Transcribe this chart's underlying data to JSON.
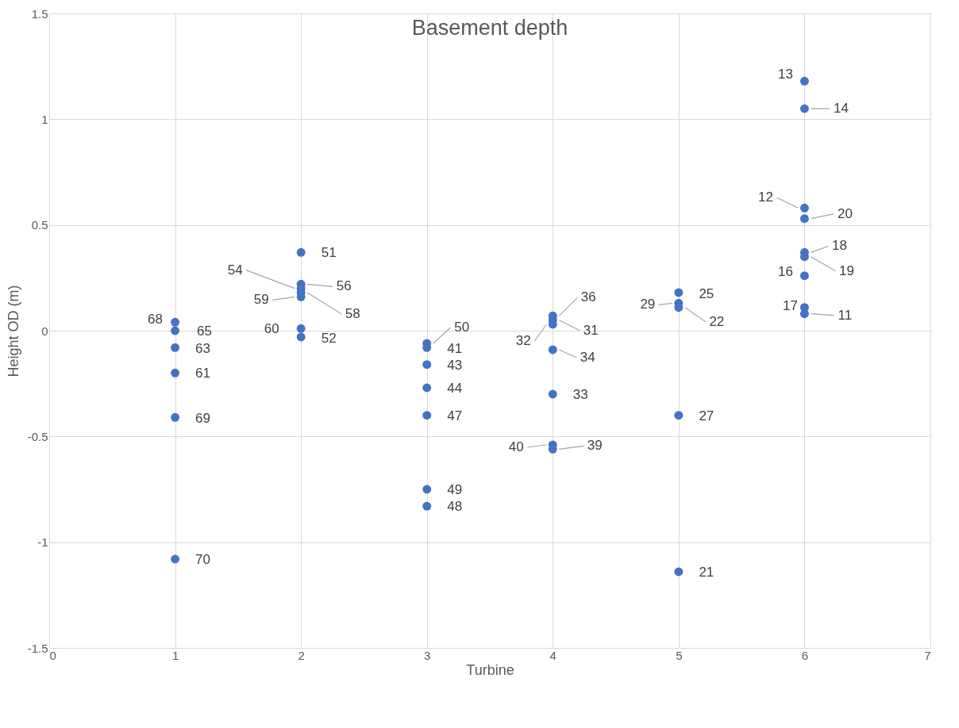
{
  "chart_data": {
    "type": "scatter",
    "title": "Basement depth",
    "xlabel": "Turbine",
    "ylabel": "Height OD (m)",
    "xlim": [
      0,
      7
    ],
    "xticks": [
      0,
      1,
      2,
      3,
      4,
      5,
      6,
      7
    ],
    "ylim": [
      -1.5,
      1.5
    ],
    "yticks": [
      -1.5,
      -1,
      -0.5,
      0,
      0.5,
      1,
      1.5
    ],
    "grid": true,
    "marker": "circle",
    "legend": false,
    "series": [
      {
        "color": "#4472c4",
        "x": [
          1,
          1,
          1,
          1,
          1,
          1,
          2,
          2,
          2,
          2,
          2,
          2,
          2,
          3,
          3,
          3,
          3,
          3,
          3,
          3,
          4,
          4,
          4,
          4,
          4,
          4,
          4,
          5,
          5,
          5,
          5,
          5,
          6,
          6,
          6,
          6,
          6,
          6,
          6,
          6,
          6
        ],
        "values": [
          0.04,
          0.0,
          -0.08,
          -0.2,
          -0.41,
          -1.08,
          0.37,
          0.22,
          0.2,
          0.16,
          0.18,
          0.01,
          -0.03,
          -0.06,
          -0.08,
          -0.16,
          -0.27,
          -0.4,
          -0.75,
          -0.83,
          0.07,
          0.05,
          0.03,
          -0.09,
          -0.3,
          -0.54,
          -0.56,
          0.18,
          0.13,
          0.11,
          -0.4,
          -1.14,
          1.18,
          1.05,
          0.58,
          0.53,
          0.37,
          0.35,
          0.26,
          0.11,
          0.08
        ]
      }
    ],
    "annotations": [
      {
        "text": "68",
        "x": 1,
        "y": 0.04
      },
      {
        "text": "65",
        "x": 1,
        "y": 0.0
      },
      {
        "text": "63",
        "x": 1,
        "y": -0.08
      },
      {
        "text": "61",
        "x": 1,
        "y": -0.2
      },
      {
        "text": "69",
        "x": 1,
        "y": -0.41
      },
      {
        "text": "70",
        "x": 1,
        "y": -1.08
      },
      {
        "text": "51",
        "x": 2,
        "y": 0.37
      },
      {
        "text": "56",
        "x": 2,
        "y": 0.22
      },
      {
        "text": "54",
        "x": 2,
        "y": 0.2
      },
      {
        "text": "59",
        "x": 2,
        "y": 0.16
      },
      {
        "text": "58",
        "x": 2,
        "y": 0.18
      },
      {
        "text": "60",
        "x": 2,
        "y": 0.01
      },
      {
        "text": "52",
        "x": 2,
        "y": -0.03
      },
      {
        "text": "50",
        "x": 3,
        "y": -0.06
      },
      {
        "text": "41",
        "x": 3,
        "y": -0.08
      },
      {
        "text": "43",
        "x": 3,
        "y": -0.16
      },
      {
        "text": "44",
        "x": 3,
        "y": -0.27
      },
      {
        "text": "47",
        "x": 3,
        "y": -0.4
      },
      {
        "text": "49",
        "x": 3,
        "y": -0.75
      },
      {
        "text": "48",
        "x": 3,
        "y": -0.83
      },
      {
        "text": "36",
        "x": 4,
        "y": 0.07
      },
      {
        "text": "31",
        "x": 4,
        "y": 0.05
      },
      {
        "text": "32",
        "x": 4,
        "y": 0.03
      },
      {
        "text": "34",
        "x": 4,
        "y": -0.09
      },
      {
        "text": "33",
        "x": 4,
        "y": -0.3
      },
      {
        "text": "40",
        "x": 4,
        "y": -0.54
      },
      {
        "text": "39",
        "x": 4,
        "y": -0.56
      },
      {
        "text": "25",
        "x": 5,
        "y": 0.18
      },
      {
        "text": "29",
        "x": 5,
        "y": 0.13
      },
      {
        "text": "22",
        "x": 5,
        "y": 0.11
      },
      {
        "text": "27",
        "x": 5,
        "y": -0.4
      },
      {
        "text": "21",
        "x": 5,
        "y": -1.14
      },
      {
        "text": "13",
        "x": 6,
        "y": 1.18
      },
      {
        "text": "14",
        "x": 6,
        "y": 1.05
      },
      {
        "text": "12",
        "x": 6,
        "y": 0.58
      },
      {
        "text": "20",
        "x": 6,
        "y": 0.53
      },
      {
        "text": "18",
        "x": 6,
        "y": 0.37
      },
      {
        "text": "19",
        "x": 6,
        "y": 0.35
      },
      {
        "text": "16",
        "x": 6,
        "y": 0.26
      },
      {
        "text": "17",
        "x": 6,
        "y": 0.11
      },
      {
        "text": "11",
        "x": 6,
        "y": 0.08
      }
    ]
  }
}
